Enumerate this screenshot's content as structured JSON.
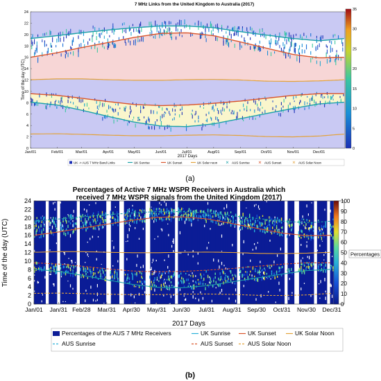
{
  "chart_data": [
    {
      "panel": "(a)",
      "type": "scatter",
      "title": "7 MHz Links from the United Kingdom to Australia (2017)",
      "xlabel": "2017 Days",
      "ylabel": "Time of the day (UTC)",
      "xlim": [
        "2017-01-01",
        "2017-12-31"
      ],
      "ylim": [
        0,
        24
      ],
      "x_ticks": [
        "Jan/01",
        "Feb/01",
        "Mar/01",
        "Apr/01",
        "May/01",
        "Jun/01",
        "Jul/01",
        "Aug/01",
        "Sep/01",
        "Oct/01",
        "Nov/01",
        "Dec/01"
      ],
      "y_ticks": [
        0,
        2,
        4,
        6,
        8,
        10,
        12,
        14,
        16,
        18,
        20,
        22,
        24
      ],
      "colorbar": {
        "min": 0,
        "max": 35,
        "ticks": [
          0,
          5,
          10,
          15,
          20,
          25,
          30,
          35
        ]
      },
      "legend": [
        "UK -> AUS 7 MHz Band Links",
        "UK Sunrise",
        "UK Sunset",
        "UK Solar noon",
        "AUS Sunrise",
        "AUS Sunset",
        "AUS Solar Noon"
      ],
      "legend_position": "bottom",
      "grid": false,
      "months": [
        "2017-01-01",
        "2017-02-01",
        "2017-03-01",
        "2017-04-01",
        "2017-05-01",
        "2017-06-01",
        "2017-07-01",
        "2017-08-01",
        "2017-09-01",
        "2017-10-01",
        "2017-11-01",
        "2017-12-01",
        "2017-12-31"
      ],
      "series": [
        {
          "name": "UK Sunrise",
          "color": "#1aa1a8",
          "values": [
            8.1,
            7.6,
            6.7,
            5.6,
            4.6,
            3.9,
            3.8,
            4.3,
            5.2,
            6.1,
            7.0,
            7.8,
            8.1
          ]
        },
        {
          "name": "UK Sunset",
          "color": "#d9542a",
          "values": [
            16.0,
            16.8,
            17.7,
            18.6,
            19.5,
            20.2,
            20.3,
            19.8,
            18.7,
            17.6,
            16.5,
            15.9,
            16.0
          ]
        },
        {
          "name": "UK Solar noon",
          "color": "#e3a23a",
          "values": [
            12.05,
            12.2,
            12.2,
            12.05,
            11.95,
            11.95,
            12.05,
            12.1,
            12.0,
            11.8,
            11.75,
            11.85,
            12.05
          ]
        },
        {
          "name": "AUS Sunrise",
          "color": "#1aa1a8",
          "values": [
            19.3,
            19.8,
            20.3,
            20.8,
            21.2,
            21.5,
            21.5,
            21.2,
            20.5,
            19.9,
            19.3,
            18.9,
            19.3
          ]
        },
        {
          "name": "AUS Sunset",
          "color": "#d9542a",
          "values": [
            9.6,
            9.3,
            8.8,
            8.2,
            7.7,
            7.5,
            7.6,
            7.9,
            8.3,
            8.8,
            9.3,
            9.6,
            9.6
          ]
        },
        {
          "name": "AUS Solar Noon",
          "color": "#e3a23a",
          "values": [
            2.5,
            2.55,
            2.45,
            2.3,
            2.2,
            2.2,
            2.3,
            2.35,
            2.25,
            2.05,
            2.0,
            2.15,
            2.5
          ]
        }
      ],
      "links_summary": "Dense clusters of link points between AUS sunrise and UK sunset in the evening (~16-22 UTC) and between UK sunrise and AUS sunset in the morning (~4-10 UTC)"
    },
    {
      "panel": "(b)",
      "type": "heatmap",
      "title": "Percentages of Active 7 MHz WSPR Receivers in Australia which received 7 MHz WSPR signals from the United Kingdom (2017)",
      "xlabel": "2017 Days",
      "ylabel": "Time of the day (UTC)",
      "xlim": [
        "2017-01-01",
        "2017-12-31"
      ],
      "ylim": [
        0,
        24
      ],
      "x_ticks": [
        "Jan/01",
        "Jan/31",
        "Feb/28",
        "Mar/31",
        "Apr/30",
        "May/31",
        "Jun/30",
        "Jul/31",
        "Aug/31",
        "Sep/30",
        "Oct/31",
        "Nov/30",
        "Dec/31"
      ],
      "y_ticks": [
        0,
        2,
        4,
        6,
        8,
        10,
        12,
        14,
        16,
        18,
        20,
        22,
        24
      ],
      "colorbar": {
        "min": 0,
        "max": 100,
        "ticks": [
          0,
          10,
          20,
          30,
          40,
          50,
          60,
          70,
          80,
          90,
          100
        ],
        "label": "Percentages"
      },
      "legend": [
        "Percentages of the AUS 7 MHz Receivers",
        "UK Sunrise",
        "UK Sunset",
        "UK Solar Noon",
        "AUS Sunrise",
        "AUS Sunset",
        "AUS Solar Noon"
      ],
      "legend_position": "bottom",
      "grid": false,
      "series_ref": "Same sunrise/sunset/solar-noon curves as panel (a)"
    }
  ],
  "captions": {
    "a": "(a)",
    "b": "(b)"
  }
}
